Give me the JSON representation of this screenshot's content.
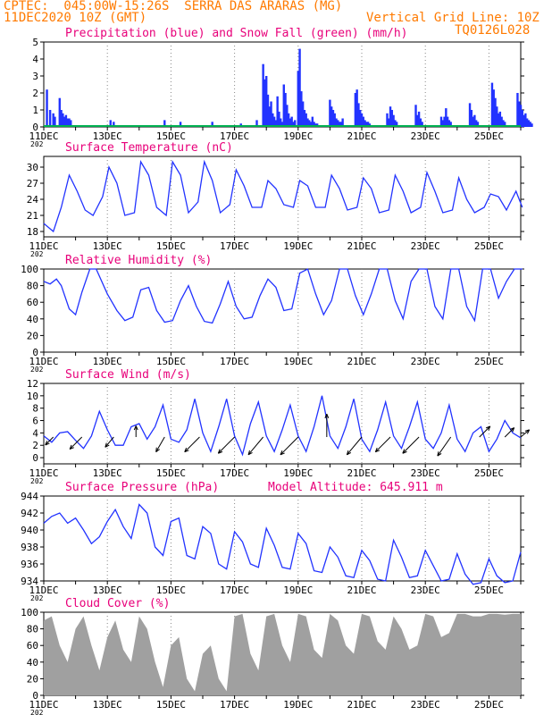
{
  "header": {
    "line1_left": "CPTEC:  045:00W-15:26S  SERRA DAS ARARAS (MG)",
    "line2_left": "11DEC2020 10Z (GMT)",
    "line2_right": "Vertical Grid Line: 10Z",
    "line3_right": "TQ0126L028",
    "text_color": "#ff7a00",
    "title_color": "#e8007a",
    "line_color": "#2233ff",
    "snow_color": "#00b050",
    "cloud_color": "#a0a0a0"
  },
  "date_labels": [
    "11DEC",
    "13DEC",
    "15DEC",
    "17DEC",
    "19DEC",
    "21DEC",
    "23DEC",
    "25DEC"
  ],
  "chart_data": [
    {
      "type": "bar",
      "title": "Precipitation (blue) and Snow Fall (green) (mm/h)",
      "ylim": [
        0,
        5
      ],
      "yticks": [
        0,
        1,
        2,
        3,
        4,
        5
      ],
      "series": [
        {
          "name": "Precipitation",
          "x": [
            0.1,
            0.2,
            0.3,
            0.35,
            0.5,
            0.55,
            0.6,
            0.65,
            0.7,
            0.75,
            0.8,
            0.85,
            2.1,
            2.2,
            3.8,
            4.3,
            5.3,
            6.2,
            6.7,
            6.9,
            6.95,
            7.0,
            7.05,
            7.1,
            7.15,
            7.2,
            7.25,
            7.3,
            7.35,
            7.4,
            7.45,
            7.5,
            7.55,
            7.6,
            7.65,
            7.7,
            7.75,
            7.8,
            7.85,
            7.9,
            8.0,
            8.05,
            8.1,
            8.15,
            8.2,
            8.25,
            8.3,
            8.35,
            8.4,
            8.45,
            8.5,
            8.55,
            8.6,
            9.0,
            9.05,
            9.1,
            9.15,
            9.2,
            9.25,
            9.3,
            9.35,
            9.4,
            9.8,
            9.85,
            9.9,
            9.95,
            10.0,
            10.05,
            10.1,
            10.15,
            10.2,
            10.25,
            10.8,
            10.85,
            10.9,
            10.95,
            11.0,
            11.05,
            11.1,
            11.7,
            11.75,
            11.8,
            11.85,
            11.9,
            12.5,
            12.55,
            12.6,
            12.65,
            12.7,
            12.75,
            12.8,
            13.4,
            13.45,
            13.5,
            13.55,
            13.6,
            13.65,
            14.1,
            14.15,
            14.2,
            14.25,
            14.3,
            14.35,
            14.4,
            14.45,
            14.5,
            14.9,
            14.95,
            15.0,
            15.05,
            15.1,
            15.15,
            15.2,
            15.25,
            15.3,
            15.35
          ],
          "values": [
            2.2,
            1.0,
            0.8,
            0.6,
            1.7,
            1.0,
            0.8,
            0.6,
            0.7,
            0.5,
            0.5,
            0.4,
            0.4,
            0.3,
            0.4,
            0.3,
            0.3,
            0.2,
            0.4,
            3.7,
            2.8,
            3.0,
            1.9,
            1.2,
            1.5,
            0.8,
            0.6,
            0.4,
            1.8,
            0.9,
            0.5,
            0.3,
            2.5,
            2.0,
            1.3,
            0.8,
            0.5,
            0.6,
            0.3,
            0.4,
            3.3,
            4.6,
            2.1,
            1.5,
            1.0,
            0.8,
            0.5,
            0.4,
            0.3,
            0.6,
            0.3,
            0.2,
            0.2,
            1.6,
            1.2,
            1.0,
            0.8,
            0.5,
            0.4,
            0.3,
            0.3,
            0.5,
            2.0,
            2.2,
            1.4,
            1.0,
            0.8,
            0.6,
            0.4,
            0.3,
            0.3,
            0.2,
            0.8,
            0.5,
            1.2,
            1.0,
            0.7,
            0.4,
            0.3,
            1.3,
            0.7,
            0.9,
            0.5,
            0.3,
            0.6,
            0.4,
            0.6,
            1.1,
            0.6,
            0.4,
            0.3,
            1.4,
            1.0,
            0.6,
            0.7,
            0.4,
            0.3,
            2.6,
            2.2,
            1.7,
            1.2,
            0.8,
            0.9,
            0.6,
            0.4,
            0.3,
            2.0,
            1.5,
            1.3,
            1.0,
            0.7,
            0.8,
            0.5,
            0.4,
            0.3,
            0.2
          ]
        },
        {
          "name": "Snow Fall",
          "values_note": "",
          "constant": 0
        }
      ]
    },
    {
      "type": "line",
      "title": "Surface Temperature (nC)",
      "ylim": [
        17,
        32
      ],
      "yticks": [
        18,
        21,
        24,
        27,
        30
      ],
      "x": [
        0,
        0.3,
        0.55,
        0.8,
        1.05,
        1.3,
        1.55,
        1.85,
        2.05,
        2.3,
        2.55,
        2.85,
        3.05,
        3.3,
        3.55,
        3.85,
        4.05,
        4.3,
        4.55,
        4.85,
        5.05,
        5.3,
        5.55,
        5.85,
        6.05,
        6.3,
        6.55,
        6.85,
        7.05,
        7.3,
        7.55,
        7.85,
        8.05,
        8.3,
        8.55,
        8.85,
        9.05,
        9.3,
        9.55,
        9.85,
        10.05,
        10.3,
        10.55,
        10.85,
        11.05,
        11.3,
        11.55,
        11.85,
        12.05,
        12.3,
        12.55,
        12.85,
        13.05,
        13.3,
        13.55,
        13.85,
        14.05,
        14.3,
        14.55,
        14.85,
        15.05
      ],
      "values": [
        19.5,
        18.0,
        22.5,
        28.5,
        25.5,
        22.0,
        21.0,
        24.5,
        30.0,
        27.0,
        21.0,
        21.5,
        31.0,
        28.5,
        22.5,
        21.0,
        31.0,
        28.5,
        21.5,
        23.5,
        31.0,
        27.5,
        21.5,
        23.0,
        29.5,
        26.5,
        22.5,
        22.5,
        27.5,
        26.0,
        23.0,
        22.5,
        27.5,
        26.5,
        22.5,
        22.5,
        28.5,
        26.0,
        22.0,
        22.5,
        28.0,
        26.0,
        21.5,
        22.0,
        28.5,
        25.5,
        21.5,
        22.5,
        29.0,
        25.5,
        21.5,
        22.0,
        28.0,
        24.0,
        21.5,
        22.5,
        25.0,
        24.5,
        22.0,
        25.5,
        22.5
      ]
    },
    {
      "type": "line",
      "title": "Relative Humidity (%)",
      "ylim": [
        0,
        100
      ],
      "yticks": [
        0,
        20,
        40,
        60,
        80,
        100
      ],
      "x": [
        0,
        0.2,
        0.4,
        0.55,
        0.8,
        1.0,
        1.2,
        1.45,
        1.65,
        2.0,
        2.3,
        2.55,
        2.8,
        3.05,
        3.3,
        3.55,
        3.8,
        4.05,
        4.3,
        4.55,
        4.8,
        5.05,
        5.3,
        5.55,
        5.8,
        6.05,
        6.3,
        6.55,
        6.8,
        7.05,
        7.3,
        7.55,
        7.8,
        8.05,
        8.3,
        8.55,
        8.8,
        9.05,
        9.3,
        9.55,
        9.8,
        10.05,
        10.3,
        10.55,
        10.8,
        11.05,
        11.3,
        11.55,
        11.8,
        12.05,
        12.3,
        12.55,
        12.8,
        13.05,
        13.3,
        13.55,
        13.8,
        14.05,
        14.3,
        14.55,
        14.8,
        15.05
      ],
      "values": [
        85,
        82,
        88,
        80,
        52,
        45,
        72,
        100,
        100,
        70,
        50,
        38,
        42,
        75,
        78,
        50,
        36,
        38,
        62,
        80,
        55,
        37,
        35,
        58,
        85,
        55,
        40,
        42,
        68,
        88,
        78,
        50,
        52,
        95,
        100,
        70,
        45,
        62,
        100,
        100,
        68,
        45,
        70,
        100,
        100,
        62,
        40,
        85,
        100,
        100,
        55,
        40,
        100,
        100,
        55,
        38,
        100,
        100,
        65,
        85,
        100,
        100
      ]
    },
    {
      "type": "line",
      "title": "Surface Wind (m/s)",
      "ylim": [
        -1,
        12
      ],
      "yticks": [
        0,
        2,
        4,
        6,
        8,
        10,
        12
      ],
      "x": [
        0,
        0.25,
        0.5,
        0.75,
        1.0,
        1.25,
        1.5,
        1.75,
        2.0,
        2.25,
        2.5,
        2.75,
        3.0,
        3.25,
        3.5,
        3.75,
        4.0,
        4.25,
        4.5,
        4.75,
        5.0,
        5.25,
        5.5,
        5.75,
        6.0,
        6.25,
        6.5,
        6.75,
        7.0,
        7.25,
        7.5,
        7.75,
        8.0,
        8.25,
        8.5,
        8.75,
        9.0,
        9.25,
        9.5,
        9.75,
        10.0,
        10.25,
        10.5,
        10.75,
        11.0,
        11.25,
        11.5,
        11.75,
        12.0,
        12.25,
        12.5,
        12.75,
        13.0,
        13.25,
        13.5,
        13.75,
        14.0,
        14.25,
        14.5,
        14.75,
        15.0
      ],
      "values": [
        3.5,
        2.5,
        4.0,
        4.2,
        2.8,
        1.5,
        3.5,
        7.5,
        4.5,
        2.0,
        2.0,
        5.0,
        5.5,
        3.0,
        5.0,
        8.5,
        3.0,
        2.5,
        4.5,
        9.5,
        4.0,
        1.0,
        5.0,
        9.5,
        3.5,
        0.5,
        5.5,
        9.0,
        3.5,
        1.0,
        4.5,
        8.5,
        3.5,
        1.0,
        5.0,
        10.0,
        3.5,
        1.5,
        5.0,
        9.5,
        3.0,
        1.0,
        4.5,
        9.0,
        3.5,
        1.5,
        5.0,
        9.0,
        3.0,
        1.5,
        4.0,
        8.5,
        3.0,
        1.0,
        4.0,
        5.0,
        1.0,
        3.0,
        6.0,
        4.0,
        3.2
      ],
      "arrows_x": [
        0.3,
        1.2,
        2.2,
        2.9,
        3.8,
        4.9,
        6.0,
        6.9,
        8.0,
        8.9,
        10.0,
        10.9,
        11.8,
        12.8,
        13.7,
        14.5,
        15.0
      ],
      "arrows_len": [
        3,
        6,
        4,
        3,
        6,
        8,
        9,
        9,
        10,
        9,
        9,
        8,
        9,
        9,
        5,
        4,
        3
      ],
      "arrows_dir": [
        225,
        225,
        230,
        90,
        240,
        225,
        225,
        230,
        225,
        90,
        230,
        225,
        225,
        235,
        45,
        45,
        40
      ]
    },
    {
      "type": "line",
      "title": "Surface Pressure (hPa)",
      "annotation": "Model Altitude: 645.911  m",
      "ylim": [
        934,
        944
      ],
      "yticks": [
        934,
        936,
        938,
        940,
        942,
        944
      ],
      "x": [
        0,
        0.25,
        0.5,
        0.75,
        1.0,
        1.25,
        1.5,
        1.75,
        2.0,
        2.25,
        2.5,
        2.75,
        3.0,
        3.25,
        3.5,
        3.75,
        4.0,
        4.25,
        4.5,
        4.75,
        5.0,
        5.25,
        5.5,
        5.75,
        6.0,
        6.25,
        6.5,
        6.75,
        7.0,
        7.25,
        7.5,
        7.75,
        8.0,
        8.25,
        8.5,
        8.75,
        9.0,
        9.25,
        9.5,
        9.75,
        10.0,
        10.25,
        10.5,
        10.75,
        11.0,
        11.25,
        11.5,
        11.75,
        12.0,
        12.25,
        12.5,
        12.75,
        13.0,
        13.25,
        13.5,
        13.75,
        14.0,
        14.25,
        14.5,
        14.75,
        15.0
      ],
      "values": [
        940.8,
        941.6,
        942.0,
        940.8,
        941.4,
        940.0,
        938.4,
        939.2,
        941.0,
        942.4,
        940.4,
        939.0,
        943.0,
        942.0,
        938.0,
        937.0,
        941.0,
        941.4,
        937.0,
        936.6,
        940.4,
        939.6,
        936.0,
        935.4,
        939.8,
        938.6,
        936.0,
        935.6,
        940.2,
        938.2,
        935.6,
        935.4,
        939.6,
        938.4,
        935.2,
        935.0,
        938.0,
        936.8,
        934.6,
        934.4,
        937.6,
        936.4,
        934.2,
        934.0,
        938.8,
        936.8,
        934.4,
        934.6,
        937.6,
        935.8,
        934.0,
        934.2,
        937.2,
        934.8,
        933.6,
        933.8,
        936.6,
        934.6,
        933.8,
        934.0,
        937.4
      ]
    },
    {
      "type": "area",
      "title": "Cloud Cover (%)",
      "ylim": [
        0,
        100
      ],
      "yticks": [
        0,
        20,
        40,
        60,
        80,
        100
      ],
      "x": [
        0,
        0.25,
        0.5,
        0.75,
        1.0,
        1.25,
        1.5,
        1.75,
        2.0,
        2.25,
        2.5,
        2.75,
        3.0,
        3.25,
        3.5,
        3.75,
        4.0,
        4.25,
        4.5,
        4.75,
        5.0,
        5.25,
        5.5,
        5.75,
        6.0,
        6.25,
        6.5,
        6.75,
        7.0,
        7.25,
        7.5,
        7.75,
        8.0,
        8.25,
        8.5,
        8.75,
        9.0,
        9.25,
        9.5,
        9.75,
        10.0,
        10.25,
        10.5,
        10.75,
        11.0,
        11.25,
        11.5,
        11.75,
        12.0,
        12.25,
        12.5,
        12.75,
        13.0,
        13.25,
        13.5,
        13.75,
        14.0,
        14.25,
        14.5,
        14.75,
        15.0
      ],
      "values": [
        90,
        95,
        60,
        40,
        80,
        95,
        60,
        30,
        70,
        90,
        55,
        40,
        95,
        80,
        40,
        10,
        60,
        70,
        20,
        5,
        50,
        60,
        20,
        5,
        95,
        98,
        50,
        30,
        95,
        98,
        60,
        40,
        98,
        95,
        55,
        45,
        98,
        90,
        60,
        50,
        98,
        95,
        65,
        55,
        95,
        80,
        55,
        60,
        98,
        95,
        70,
        75,
        98,
        98,
        95,
        95,
        98,
        98,
        97,
        98,
        98
      ]
    }
  ]
}
